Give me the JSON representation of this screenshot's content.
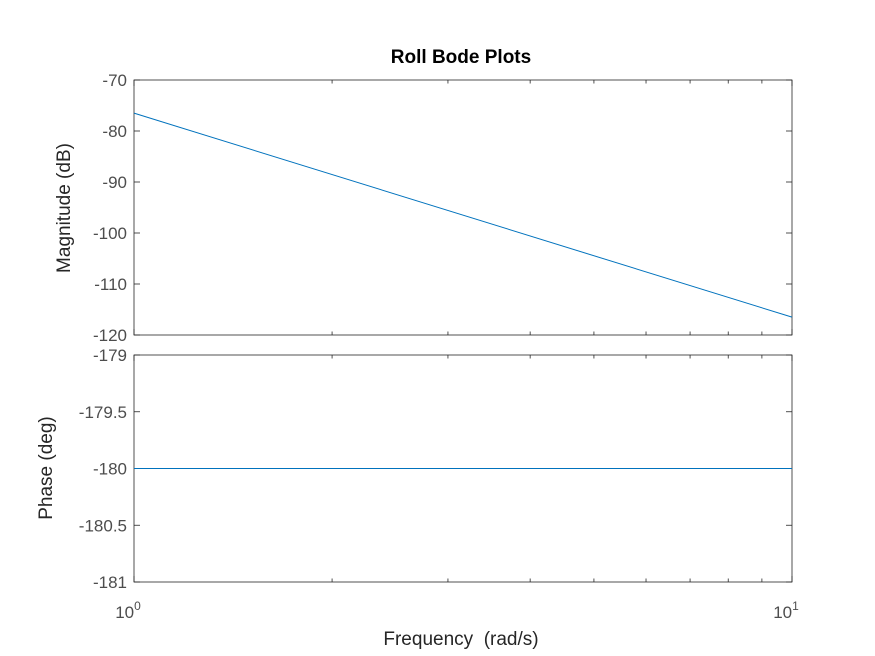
{
  "chart_data": {
    "title": "Roll Bode Plots",
    "type": "line",
    "x_scale": "log",
    "xlabel": "Frequency  (rad/s)",
    "xlim": [
      1,
      10
    ],
    "x_ticks": [
      {
        "value": 1,
        "base": "10",
        "exponent": "0"
      },
      {
        "value": 10,
        "base": "10",
        "exponent": "1"
      }
    ],
    "line_color": "#0072bd",
    "grid": false,
    "subplots": [
      {
        "name": "magnitude",
        "ylabel": "Magnitude (dB)",
        "ylim": [
          -120,
          -70
        ],
        "y_ticks": [
          -70,
          -80,
          -90,
          -100,
          -110,
          -120
        ],
        "y_tick_labels": [
          "-70",
          "-80",
          "-90",
          "-100",
          "-110",
          "-120"
        ],
        "series": [
          {
            "x": [
              1,
              10
            ],
            "y": [
              -76.5,
              -116.5
            ]
          }
        ]
      },
      {
        "name": "phase",
        "ylabel": "Phase (deg)",
        "ylim": [
          -181,
          -179
        ],
        "y_ticks": [
          -179,
          -179.5,
          -180,
          -180.5,
          -181
        ],
        "y_tick_labels": [
          "-179",
          "-179.5",
          "-180",
          "-180.5",
          "-181"
        ],
        "series": [
          {
            "x": [
              1,
              10
            ],
            "y": [
              -180,
              -180
            ]
          }
        ]
      }
    ]
  }
}
